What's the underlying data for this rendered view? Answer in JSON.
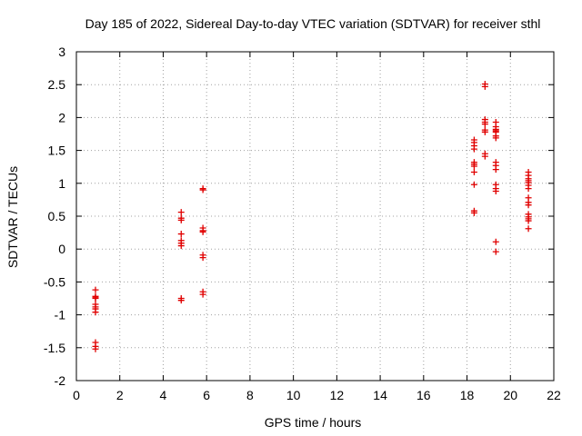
{
  "chart_data": {
    "type": "scatter",
    "title": "Day 185 of 2022, Sidereal Day-to-day VTEC variation (SDTVAR) for receiver sthl",
    "xlabel": "GPS time / hours",
    "ylabel": "SDTVAR / TECUs",
    "xlim": [
      0,
      22
    ],
    "ylim": [
      -2,
      3
    ],
    "xticks": [
      0,
      2,
      4,
      6,
      8,
      10,
      12,
      14,
      16,
      18,
      20,
      22
    ],
    "yticks": [
      -2,
      -1.5,
      -1,
      -0.5,
      0,
      0.5,
      1,
      1.5,
      2,
      2.5,
      3
    ],
    "xtick_labels": [
      "0",
      "2",
      "4",
      "6",
      "8",
      "10",
      "12",
      "14",
      "16",
      "18",
      "20",
      "22"
    ],
    "ytick_labels": [
      "-2",
      "-1.5",
      "-1",
      "-0.5",
      "0",
      "0.5",
      "1",
      "1.5",
      "2",
      "2.5",
      "3"
    ],
    "grid": true,
    "marker": "+",
    "color": "#e00000",
    "series": [
      {
        "name": "SDTVAR",
        "points": [
          [
            0.88,
            -0.62
          ],
          [
            0.88,
            -0.72
          ],
          [
            0.88,
            -0.74
          ],
          [
            0.88,
            -0.75
          ],
          [
            0.88,
            -0.84
          ],
          [
            0.88,
            -0.88
          ],
          [
            0.88,
            -0.91
          ],
          [
            0.88,
            -0.96
          ],
          [
            0.88,
            -1.42
          ],
          [
            0.88,
            -1.48
          ],
          [
            0.88,
            -1.52
          ],
          [
            4.83,
            0.56
          ],
          [
            4.83,
            0.47
          ],
          [
            4.83,
            0.44
          ],
          [
            4.83,
            0.23
          ],
          [
            4.83,
            0.13
          ],
          [
            4.83,
            0.09
          ],
          [
            4.83,
            0.05
          ],
          [
            4.83,
            -0.75
          ],
          [
            4.83,
            -0.78
          ],
          [
            5.83,
            0.92
          ],
          [
            5.83,
            0.9
          ],
          [
            5.83,
            0.32
          ],
          [
            5.83,
            0.28
          ],
          [
            5.83,
            0.26
          ],
          [
            5.83,
            -0.09
          ],
          [
            5.83,
            -0.13
          ],
          [
            5.83,
            -0.65
          ],
          [
            5.83,
            -0.69
          ],
          [
            18.33,
            1.66
          ],
          [
            18.33,
            1.62
          ],
          [
            18.33,
            1.57
          ],
          [
            18.33,
            1.52
          ],
          [
            18.33,
            1.32
          ],
          [
            18.33,
            1.29
          ],
          [
            18.33,
            1.26
          ],
          [
            18.33,
            1.17
          ],
          [
            18.33,
            0.98
          ],
          [
            18.33,
            0.58
          ],
          [
            18.33,
            0.55
          ],
          [
            18.83,
            2.51
          ],
          [
            18.83,
            2.47
          ],
          [
            18.83,
            1.97
          ],
          [
            18.83,
            1.93
          ],
          [
            18.83,
            1.9
          ],
          [
            18.83,
            1.81
          ],
          [
            18.83,
            1.78
          ],
          [
            18.83,
            1.45
          ],
          [
            18.83,
            1.41
          ],
          [
            19.33,
            1.93
          ],
          [
            19.33,
            1.86
          ],
          [
            19.33,
            1.82
          ],
          [
            19.33,
            1.8
          ],
          [
            19.33,
            1.78
          ],
          [
            19.33,
            1.72
          ],
          [
            19.33,
            1.69
          ],
          [
            19.33,
            1.32
          ],
          [
            19.33,
            1.27
          ],
          [
            19.33,
            1.21
          ],
          [
            19.33,
            0.98
          ],
          [
            19.33,
            0.92
          ],
          [
            19.33,
            0.88
          ],
          [
            19.33,
            0.11
          ],
          [
            19.33,
            -0.04
          ],
          [
            20.83,
            1.17
          ],
          [
            20.83,
            1.12
          ],
          [
            20.83,
            1.07
          ],
          [
            20.83,
            1.04
          ],
          [
            20.83,
            1.01
          ],
          [
            20.83,
            0.97
          ],
          [
            20.83,
            0.92
          ],
          [
            20.83,
            0.78
          ],
          [
            20.83,
            0.71
          ],
          [
            20.83,
            0.67
          ],
          [
            20.83,
            0.53
          ],
          [
            20.83,
            0.49
          ],
          [
            20.83,
            0.46
          ],
          [
            20.83,
            0.43
          ],
          [
            20.83,
            0.31
          ]
        ]
      }
    ]
  }
}
